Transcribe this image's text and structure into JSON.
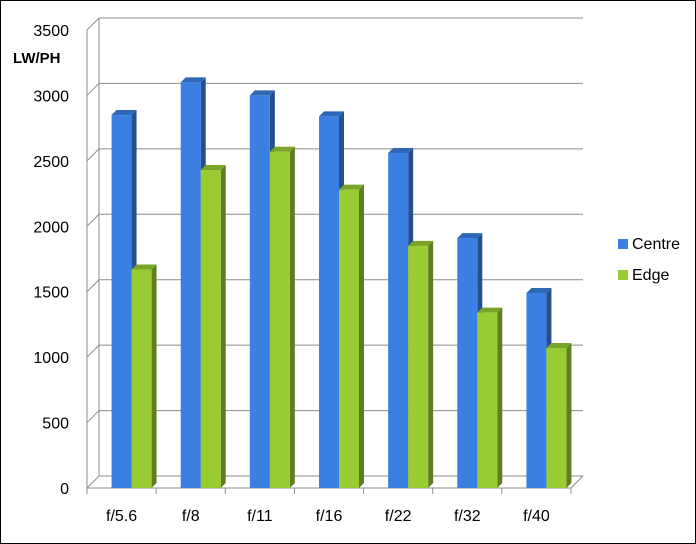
{
  "chart_data": {
    "type": "bar",
    "style": "3d-clustered-column",
    "title": "",
    "xlabel": "",
    "ylabel": "LW/PH",
    "ylim": [
      0,
      3500
    ],
    "yticks": [
      0,
      500,
      1000,
      1500,
      2000,
      2500,
      3000,
      3500
    ],
    "grid": true,
    "legend_position": "right",
    "categories": [
      "f/5.6",
      "f/8",
      "f/11",
      "f/16",
      "f/22",
      "f/32",
      "f/40"
    ],
    "series": [
      {
        "name": "Centre",
        "color": "#3b7fe3",
        "values": [
          2850,
          3100,
          3000,
          2840,
          2560,
          1910,
          1490
        ]
      },
      {
        "name": "Edge",
        "color": "#99cc33",
        "values": [
          1670,
          2430,
          2570,
          2280,
          1850,
          1340,
          1070
        ]
      }
    ]
  }
}
